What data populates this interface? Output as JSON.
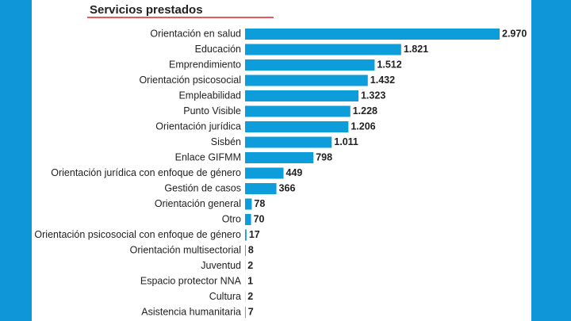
{
  "chart_data": {
    "type": "bar",
    "orientation": "horizontal",
    "title": "Servicios prestados",
    "categories": [
      "Orientación en salud",
      "Educación",
      "Emprendimiento",
      "Orientación psicosocial",
      "Empleabilidad",
      "Punto Visible",
      "Orientación jurídica",
      "Sisbén",
      "Enlace GIFMM",
      "Orientación jurídica con enfoque de género",
      "Gestión de casos",
      "Orientación general",
      "Otro",
      "Orientación psicosocial con enfoque de género",
      "Orientación multisectorial",
      "Juventud",
      "Espacio protector NNA",
      "Cultura",
      "Asistencia humanitaria"
    ],
    "values": [
      2970,
      1821,
      1512,
      1432,
      1323,
      1228,
      1206,
      1011,
      798,
      449,
      366,
      78,
      70,
      17,
      8,
      2,
      1,
      2,
      7
    ],
    "value_labels": [
      "2.970",
      "1.821",
      "1.512",
      "1.432",
      "1.323",
      "1.228",
      "1.206",
      "1.011",
      "798",
      "449",
      "366",
      "78",
      "70",
      "17",
      "8",
      "2",
      "1",
      "2",
      "7"
    ],
    "color": "#0d9ddb"
  }
}
